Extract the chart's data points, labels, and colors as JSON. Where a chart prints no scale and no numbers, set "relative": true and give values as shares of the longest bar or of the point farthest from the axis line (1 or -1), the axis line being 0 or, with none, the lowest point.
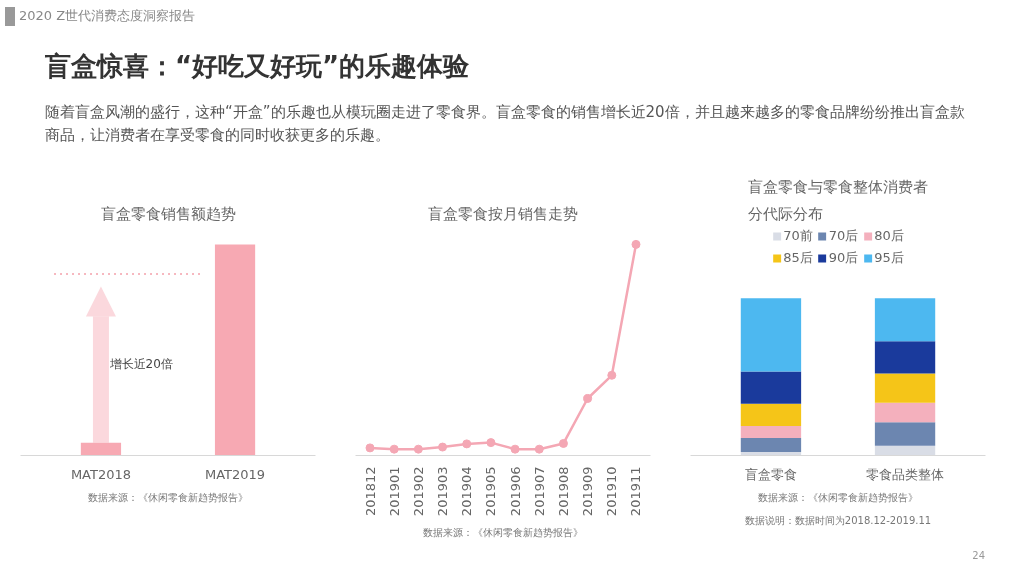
{
  "chart_data": [
    {
      "type": "other",
      "title": "盲盒惊喜：“好吃又好玩”的乐趣体验",
      "subtitle": "随着盲盒风潮的盛行，这种“开盒”的乐趣也从模玩圈走进了零食界。盲盒零食的销售增长近20倍，并且越来越多的零食品牌纷纷推出盲盒款商品，让消费者在享受零食的同时收获更多的乐趣。",
      "annotations": [
        "2020 Z世代消费态度洞察报告",
        "24"
      ]
    },
    {
      "type": "bar",
      "title": "盲盒零食销售额趋势",
      "categories": [
        "MAT2018",
        "MAT2019"
      ],
      "values": [
        0.06,
        1
      ],
      "color": "#f7a9b3",
      "relative": true,
      "grid": false,
      "ref_lines": [
        {
          "axis": "y",
          "value": 0.86,
          "color": "#f4a0aa",
          "line_style": "dotted"
        }
      ],
      "annotations": [
        "增长近20倍",
        "数据来源：《休闲零食新趋势报告》"
      ]
    },
    {
      "type": "line",
      "title": "盲盒零食按月销售走势",
      "categories": [
        "201812",
        "201901",
        "201902",
        "201903",
        "201904",
        "201905",
        "201906",
        "201907",
        "201908",
        "201909",
        "201910",
        "201911"
      ],
      "values": [
        0.036,
        0.03,
        0.03,
        0.04,
        0.055,
        0.061,
        0.03,
        0.03,
        0.057,
        0.27,
        0.38,
        1
      ],
      "color": "#f4a7b4",
      "marker": "circle",
      "line_style": "solid",
      "relative": true,
      "grid": false,
      "annotations": [
        "数据来源：《休闲零食新趋势报告》"
      ]
    },
    {
      "type": "bar",
      "title": "盲盒零食与零食整体消费者分代际分布",
      "categories": [
        "盲盒零食",
        "零食品类整体"
      ],
      "stacked": true,
      "relative": true,
      "grid": false,
      "legend": "top",
      "series": [
        {
          "name": "70前",
          "color": "#d9dde6",
          "values": [
            0.022,
            0.062
          ]
        },
        {
          "name": "70后",
          "color": "#6c86b0",
          "values": [
            0.09,
            0.149
          ]
        },
        {
          "name": "80后",
          "color": "#f4b0bd",
          "values": [
            0.075,
            0.124
          ]
        },
        {
          "name": "85后",
          "color": "#f5c518",
          "values": [
            0.142,
            0.187
          ]
        },
        {
          "name": "90后",
          "color": "#1a3a9c",
          "values": [
            0.206,
            0.204
          ]
        },
        {
          "name": "95后",
          "color": "#4db8f0",
          "values": [
            0.465,
            0.274
          ]
        }
      ],
      "annotations": [
        "数据来源：《休闲零食新趋势报告》",
        "数据说明：数据时间为2018.12-2019.11"
      ]
    }
  ]
}
